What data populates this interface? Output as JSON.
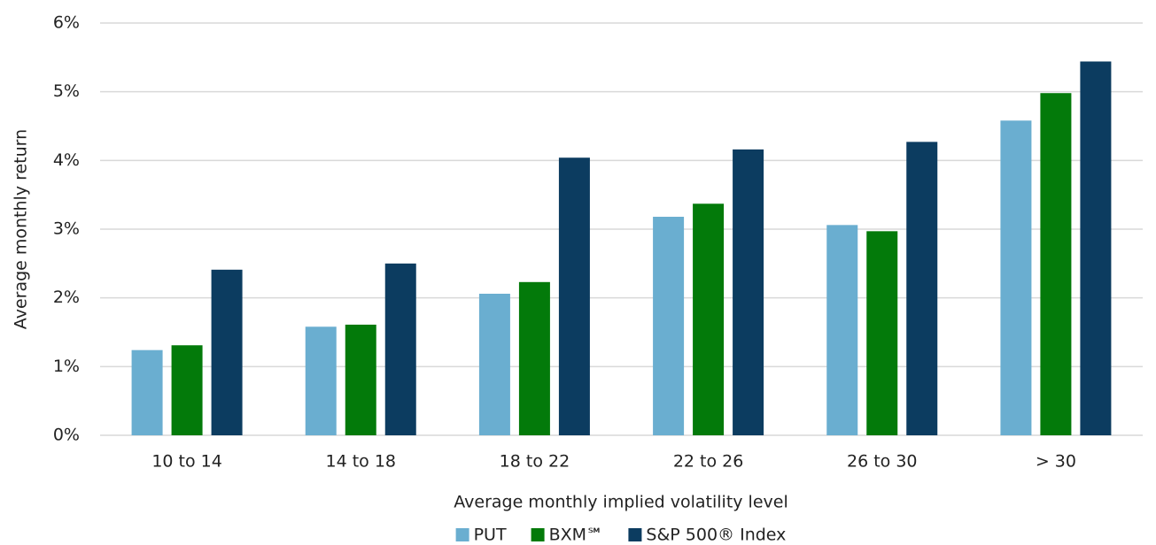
{
  "chart_data": {
    "type": "bar",
    "x_label": "Average monthly implied volatility level",
    "y_label": "Average monthly return",
    "categories": [
      "10 to 14",
      "14 to 18",
      "18 to 22",
      "22 to 26",
      "26 to 30",
      "> 30"
    ],
    "series": [
      {
        "name": "PUT",
        "color": "#6aaed0",
        "values": [
          1.24,
          1.58,
          2.06,
          3.18,
          3.06,
          4.58
        ]
      },
      {
        "name": "BXM℠",
        "color": "#037a0a",
        "values": [
          1.31,
          1.61,
          2.23,
          3.37,
          2.97,
          4.98
        ]
      },
      {
        "name": "S&P 500® Index",
        "color": "#0c3c60",
        "values": [
          2.41,
          2.5,
          4.04,
          4.16,
          4.27,
          5.44
        ]
      }
    ],
    "ylim": [
      0,
      6
    ],
    "yticks": [
      {
        "value": 0,
        "label": "0%"
      },
      {
        "value": 1,
        "label": "1%"
      },
      {
        "value": 2,
        "label": "2%"
      },
      {
        "value": 3,
        "label": "3%"
      },
      {
        "value": 4,
        "label": "4%"
      },
      {
        "value": 5,
        "label": "5%"
      },
      {
        "value": 6,
        "label": "6%"
      }
    ],
    "grid": true,
    "legend": "bottom"
  }
}
